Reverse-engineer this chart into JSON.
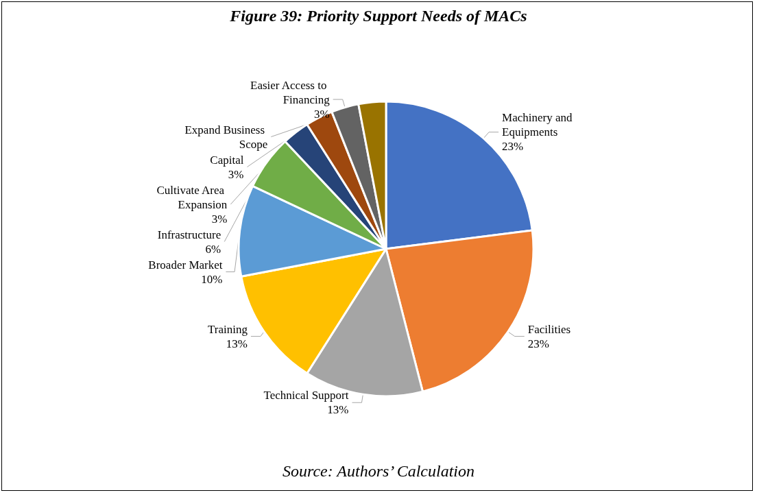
{
  "chart_data": {
    "type": "pie",
    "title": "Figure 39: Priority Support Needs of MACs",
    "categories": [
      "Machinery and Equipments",
      "Facilities",
      "Technical Support",
      "Training",
      "Broader Market",
      "Infrastructure",
      "Cultivate Area Expansion",
      "Capital",
      "Easier Access to Financing",
      "Expand Business Scope"
    ],
    "values": [
      23,
      23,
      13,
      13,
      10,
      6,
      3,
      3,
      3,
      3
    ],
    "value_labels": [
      "23%",
      "23%",
      "13%",
      "13%",
      "10%",
      "6%",
      "3%",
      "3%",
      "3%",
      null
    ],
    "colors": [
      "#4472c4",
      "#ed7d31",
      "#a5a5a5",
      "#ffc000",
      "#5b9bd5",
      "#70ad47",
      "#264478",
      "#9e480e",
      "#636363",
      "#997300"
    ],
    "annotations": [
      "Source: Authors’ Calculation"
    ],
    "legend": false
  }
}
